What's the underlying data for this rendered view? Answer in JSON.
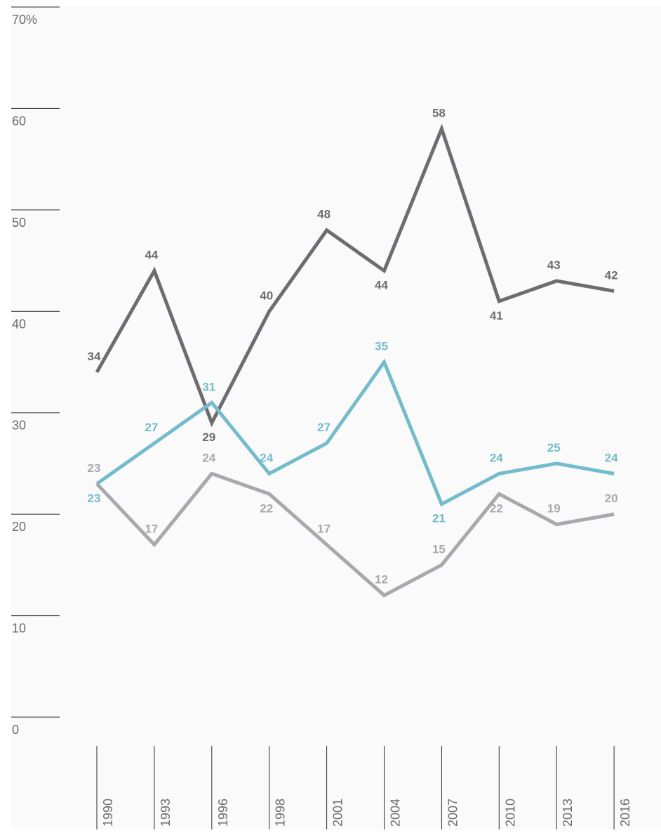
{
  "chart_data": {
    "type": "line",
    "categories": [
      "1990",
      "1993",
      "1996",
      "1998",
      "2001",
      "2004",
      "2007",
      "2010",
      "2013",
      "2016"
    ],
    "series": [
      {
        "color": "#6d6d71",
        "values": [
          34,
          44,
          29,
          40,
          48,
          44,
          58,
          41,
          43,
          42
        ],
        "label_positions": [
          "above",
          "above",
          "below",
          "above",
          "above",
          "below",
          "above",
          "below",
          "above",
          "above"
        ]
      },
      {
        "color": "#74bccb",
        "values": [
          23,
          27,
          31,
          24,
          27,
          35,
          21,
          24,
          25,
          24
        ],
        "label_positions": [
          "below",
          "above",
          "above",
          "above",
          "above",
          "above",
          "below",
          "above",
          "above",
          "above"
        ]
      },
      {
        "color": "#a8a8ad",
        "values": [
          23,
          17,
          24,
          22,
          17,
          12,
          15,
          22,
          19,
          20
        ],
        "label_positions": [
          "above",
          "above",
          "above",
          "below",
          "above",
          "above",
          "above",
          "below",
          "above",
          "above"
        ]
      }
    ],
    "yticks": [
      "0",
      "10",
      "20",
      "30",
      "40",
      "50",
      "60",
      "70%"
    ],
    "ylim": [
      0,
      70
    ],
    "grid": false,
    "background": "#fafafa",
    "axis_color": "#2b2b2b"
  }
}
